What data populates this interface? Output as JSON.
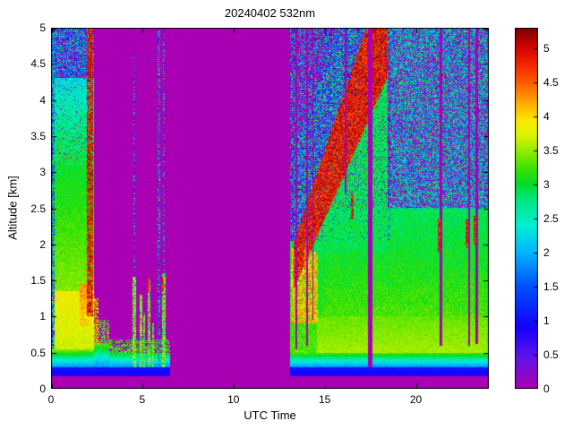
{
  "figure": {
    "title": "20240402 532nm",
    "x_axis": {
      "label": "UTC Time",
      "range": [
        0,
        24
      ],
      "ticks": [
        0,
        5,
        10,
        15,
        20
      ]
    },
    "y_axis": {
      "label": "Altitude [km]",
      "range": [
        0,
        5
      ],
      "ticks": [
        0,
        0.5,
        1,
        1.5,
        2,
        2.5,
        3,
        3.5,
        4,
        4.5,
        5
      ]
    },
    "colorbar": {
      "range": [
        0,
        5.3
      ],
      "ticks": [
        0,
        0.5,
        1,
        1.5,
        2,
        2.5,
        3,
        3.5,
        4,
        4.5,
        5
      ]
    }
  },
  "chart_data": {
    "type": "heatmap",
    "title": "20240402 532nm",
    "xlabel": "UTC Time",
    "ylabel": "Altitude [km]",
    "xlim": [
      0,
      24
    ],
    "ylim": [
      0,
      5
    ],
    "value_range": [
      0,
      5.3
    ],
    "background_value": 0,
    "grid": false,
    "colormap_stops": [
      [
        0.0,
        "#AA00B4"
      ],
      [
        0.45,
        "#6414E6"
      ],
      [
        0.9,
        "#1400FF"
      ],
      [
        1.5,
        "#0050FF"
      ],
      [
        2.0,
        "#00B4FF"
      ],
      [
        2.4,
        "#00F0D2"
      ],
      [
        2.8,
        "#00E678"
      ],
      [
        3.0,
        "#00DC28"
      ],
      [
        3.2,
        "#32E100"
      ],
      [
        3.5,
        "#96EB00"
      ],
      [
        3.75,
        "#E1F500"
      ],
      [
        3.95,
        "#FFE600"
      ],
      [
        4.2,
        "#FFAA00"
      ],
      [
        4.5,
        "#FF5A00"
      ],
      [
        4.8,
        "#F01E00"
      ],
      [
        5.05,
        "#C80000"
      ],
      [
        5.3,
        "#780000"
      ]
    ],
    "regions": [
      {
        "name": "surface-blue-line-morning",
        "type": "rect",
        "t": [
          0,
          6.55
        ],
        "z": [
          0.17,
          0.3
        ],
        "v": [
          0.8,
          1.1
        ],
        "noise": 0.08,
        "cov": 1
      },
      {
        "name": "surface-blue-line-evening",
        "type": "rect",
        "t": [
          13.1,
          24
        ],
        "z": [
          0.17,
          0.3
        ],
        "v": [
          0.8,
          1.1
        ],
        "noise": 0.08,
        "cov": 1
      },
      {
        "name": "morning-nearsurface",
        "type": "rect",
        "t": [
          0,
          2.35
        ],
        "z": [
          0.3,
          0.55
        ],
        "v": [
          1.8,
          3.5
        ],
        "noise": 0.15,
        "cov": 1
      },
      {
        "name": "morning-lowlayer",
        "type": "rect",
        "t": [
          0,
          2.35
        ],
        "z": [
          0.55,
          1.35
        ],
        "v": [
          3.7,
          3.85
        ],
        "noise": 0.2,
        "cov": 1
      },
      {
        "name": "morning-midlayer",
        "type": "rect",
        "t": [
          0,
          2.35
        ],
        "z": [
          1.35,
          3.1
        ],
        "v": [
          3.45,
          3.0
        ],
        "noise": 0.2,
        "cov": 1
      },
      {
        "name": "morning-upper",
        "type": "rect",
        "t": [
          0,
          2.35
        ],
        "z": [
          3.1,
          4.3
        ],
        "v": [
          3.0,
          2.3
        ],
        "noise": 0.35,
        "cov": 0.95
      },
      {
        "name": "morning-top-speckle",
        "type": "rect",
        "t": [
          0,
          2.35
        ],
        "z": [
          4.3,
          5
        ],
        "vr": [
          0.4,
          3.1
        ],
        "cov": 0.72
      },
      {
        "name": "left-edge-noise",
        "type": "rect",
        "t": [
          0,
          0.18
        ],
        "z": [
          0.55,
          5
        ],
        "vr": [
          0.3,
          3.2
        ],
        "cov": 0.8
      },
      {
        "name": "precloud-orange",
        "type": "rect",
        "t": [
          1.55,
          2.1
        ],
        "z": [
          0.85,
          1.45
        ],
        "v": [
          4.0,
          4.3
        ],
        "noise": 0.3,
        "cov": 0.92
      },
      {
        "name": "morning-cloud-streak",
        "type": "rect",
        "t": [
          1.98,
          2.32
        ],
        "z": [
          1.0,
          5
        ],
        "vr": [
          4.5,
          5.3
        ],
        "cov": 0.82
      },
      {
        "name": "post-cloud-nearsurface",
        "type": "rect",
        "t": [
          2.35,
          3.2
        ],
        "z": [
          0.3,
          0.62
        ],
        "v": [
          1.8,
          3.3
        ],
        "noise": 0.2,
        "cov": 1
      },
      {
        "name": "post-cloud-blob",
        "type": "rect",
        "t": [
          2.35,
          2.62
        ],
        "z": [
          0.62,
          1.25
        ],
        "vr": [
          3.2,
          5.2
        ],
        "cov": 0.8
      },
      {
        "name": "post-cloud-remnant",
        "type": "rect",
        "t": [
          2.62,
          3.2
        ],
        "z": [
          0.62,
          0.95
        ],
        "vr": [
          2.6,
          3.9
        ],
        "cov": 0.5
      },
      {
        "name": "midmorning-bottom",
        "type": "rect",
        "t": [
          3.2,
          6.55
        ],
        "z": [
          0.3,
          0.5
        ],
        "v": [
          1.8,
          3.1
        ],
        "noise": 0.15,
        "cov": 1
      },
      {
        "name": "midmorning-bottom-top",
        "type": "rect",
        "t": [
          3.2,
          6.55
        ],
        "z": [
          0.5,
          0.68
        ],
        "vr": [
          2.8,
          3.6
        ],
        "cov": 0.55
      },
      {
        "name": "col-4p5",
        "type": "rect",
        "t": [
          4.48,
          4.66
        ],
        "z": [
          0.3,
          1.55
        ],
        "vr": [
          2.4,
          4.2
        ],
        "cov": 0.85
      },
      {
        "name": "col-4p5-top",
        "type": "rect",
        "t": [
          4.5,
          4.62
        ],
        "z": [
          1.55,
          4.6
        ],
        "vr": [
          0.4,
          3.0
        ],
        "cov": 0.35
      },
      {
        "name": "col-4p9",
        "type": "rect",
        "t": [
          4.86,
          5.0
        ],
        "z": [
          0.3,
          1.3
        ],
        "vr": [
          2.4,
          4.2
        ],
        "cov": 0.85
      },
      {
        "name": "col-5p1",
        "type": "rect",
        "t": [
          5.05,
          5.16
        ],
        "z": [
          0.3,
          1.05
        ],
        "vr": [
          2.4,
          4.0
        ],
        "cov": 0.85
      },
      {
        "name": "col-5p35",
        "type": "rect",
        "t": [
          5.3,
          5.46
        ],
        "z": [
          0.3,
          1.5
        ],
        "vr": [
          2.4,
          4.2
        ],
        "cov": 0.85
      },
      {
        "name": "col-5p35-redtip",
        "type": "rect",
        "t": [
          5.32,
          5.42
        ],
        "z": [
          1.35,
          1.55
        ],
        "vr": [
          4.4,
          5.2
        ],
        "cov": 0.85
      },
      {
        "name": "col-5p6",
        "type": "rect",
        "t": [
          5.55,
          5.66
        ],
        "z": [
          0.3,
          0.9
        ],
        "vr": [
          2.4,
          3.8
        ],
        "cov": 0.8
      },
      {
        "name": "col-5p9-tall",
        "type": "rect",
        "t": [
          5.86,
          6.0
        ],
        "z": [
          0.3,
          5
        ],
        "vr": [
          0.4,
          3.4
        ],
        "cov": 0.5
      },
      {
        "name": "col-6p15",
        "type": "rect",
        "t": [
          6.1,
          6.26
        ],
        "z": [
          0.3,
          1.6
        ],
        "vr": [
          2.4,
          4.2
        ],
        "cov": 0.88
      },
      {
        "name": "col-6p15-top",
        "type": "rect",
        "t": [
          6.12,
          6.24
        ],
        "z": [
          1.6,
          5
        ],
        "vr": [
          0.4,
          3.2
        ],
        "cov": 0.35
      },
      {
        "name": "col-6p15-redtip",
        "type": "rect",
        "t": [
          6.1,
          6.2
        ],
        "z": [
          1.35,
          1.55
        ],
        "vr": [
          4.4,
          5.2
        ],
        "cov": 0.85
      },
      {
        "name": "evening-nearsurface",
        "type": "rect",
        "t": [
          13.1,
          24
        ],
        "z": [
          0.3,
          0.5
        ],
        "v": [
          1.8,
          3.3
        ],
        "noise": 0.15,
        "cov": 1
      },
      {
        "name": "evening-bl-early",
        "type": "rect",
        "t": [
          13.1,
          15.0
        ],
        "z": [
          0.5,
          2.05
        ],
        "v": [
          3.3,
          2.9
        ],
        "noise": 0.25,
        "cov": 1
      },
      {
        "name": "evening-bl-main",
        "type": "rect",
        "t": [
          15.0,
          24
        ],
        "z": [
          0.5,
          2.5
        ],
        "v": [
          3.4,
          2.85
        ],
        "noise": 0.25,
        "cov": 1
      },
      {
        "name": "evening-bl-lowyellow",
        "type": "rect",
        "t": [
          14.6,
          24
        ],
        "z": [
          0.5,
          1.0
        ],
        "v": [
          3.55,
          3.35
        ],
        "noise": 0.15,
        "cov": 1
      },
      {
        "name": "evening-orange-blobs",
        "type": "rect",
        "t": [
          13.15,
          14.65
        ],
        "z": [
          0.9,
          1.95
        ],
        "vr": [
          3.5,
          4.6
        ],
        "cov": 0.8
      },
      {
        "name": "evening-upper-speckle-left",
        "type": "rect",
        "t": [
          13.1,
          18.6
        ],
        "z": [
          2.05,
          5
        ],
        "vr": [
          0.5,
          3.2
        ],
        "cov": 0.5
      },
      {
        "name": "evening-upper-speckle-right",
        "type": "rect",
        "t": [
          18.6,
          24
        ],
        "z": [
          2.5,
          5
        ],
        "vr": [
          1.3,
          3.2
        ],
        "cov": 0.62
      },
      {
        "name": "band-below-green",
        "type": "slant",
        "t": [
          13.3,
          18.45
        ],
        "c0": 1.7,
        "slope": 0.66,
        "hw": 0.32,
        "hwg": 0.09,
        "side": "below",
        "zmin": 1.9,
        "v": [
          2.9,
          2.9
        ],
        "noise": 0.3,
        "cov": 0.85
      },
      {
        "name": "ascending-cloud-band",
        "type": "slant",
        "t": [
          13.3,
          18.45
        ],
        "c0": 1.7,
        "slope": 0.66,
        "hw": 0.32,
        "hwg": 0.09,
        "side": "band",
        "vr": [
          4.4,
          5.3
        ],
        "cov": 0.92
      },
      {
        "name": "band-above-speckle",
        "type": "slant",
        "t": [
          13.3,
          18.45
        ],
        "c0": 1.7,
        "slope": 0.66,
        "hw": 0.32,
        "hwg": 0.09,
        "side": "above",
        "depth": 1.2,
        "vr": [
          0.4,
          3.4
        ],
        "cov": 0.55
      },
      {
        "name": "atten-13p4",
        "type": "rect",
        "t": [
          13.38,
          13.5
        ],
        "z": [
          0.55,
          5
        ],
        "v": [
          0,
          0
        ],
        "cov": 1
      },
      {
        "name": "atten-14p0",
        "type": "rect",
        "t": [
          13.98,
          14.08
        ],
        "z": [
          0.6,
          5
        ],
        "v": [
          0,
          0
        ],
        "cov": 1
      },
      {
        "name": "atten-14p35",
        "type": "rect",
        "t": [
          14.32,
          14.4
        ],
        "z": [
          0.95,
          5
        ],
        "v": [
          0,
          0
        ],
        "cov": 1
      },
      {
        "name": "atten-16p15",
        "type": "rect",
        "t": [
          16.12,
          16.2
        ],
        "z": [
          2.7,
          5
        ],
        "v": [
          0,
          0
        ],
        "cov": 1
      },
      {
        "name": "atten-17p5",
        "type": "rect",
        "t": [
          17.36,
          17.62
        ],
        "z": [
          0.3,
          5
        ],
        "v": [
          0,
          0
        ],
        "cov": 1
      },
      {
        "name": "atten-21p4",
        "type": "rect",
        "t": [
          21.32,
          21.44
        ],
        "z": [
          0.6,
          5
        ],
        "v": [
          0,
          0
        ],
        "cov": 1
      },
      {
        "name": "atten-22p9",
        "type": "rect",
        "t": [
          22.86,
          22.98
        ],
        "z": [
          0.6,
          5
        ],
        "v": [
          0,
          0
        ],
        "cov": 1
      },
      {
        "name": "atten-23p3",
        "type": "rect",
        "t": [
          23.28,
          23.4
        ],
        "z": [
          0.62,
          5
        ],
        "v": [
          0,
          0
        ],
        "cov": 1
      },
      {
        "name": "blob-14p0",
        "type": "rect",
        "t": [
          13.88,
          13.99
        ],
        "z": [
          1.5,
          1.95
        ],
        "vr": [
          3.8,
          4.9
        ],
        "cov": 0.85
      },
      {
        "name": "blob-16p5",
        "type": "rect",
        "t": [
          16.45,
          16.6
        ],
        "z": [
          2.35,
          2.7
        ],
        "vr": [
          4.4,
          5.2
        ],
        "cov": 0.85
      },
      {
        "name": "blob-21p3",
        "type": "rect",
        "t": [
          21.2,
          21.33
        ],
        "z": [
          1.9,
          2.35
        ],
        "vr": [
          4.4,
          5.3
        ],
        "cov": 0.9
      },
      {
        "name": "blob-22p8",
        "type": "rect",
        "t": [
          22.74,
          22.87
        ],
        "z": [
          1.95,
          2.35
        ],
        "vr": [
          4.4,
          5.3
        ],
        "cov": 0.9
      },
      {
        "name": "blob-23p2",
        "type": "rect",
        "t": [
          23.16,
          23.29
        ],
        "z": [
          2.0,
          2.4
        ],
        "vr": [
          4.4,
          5.3
        ],
        "cov": 0.9
      }
    ]
  }
}
